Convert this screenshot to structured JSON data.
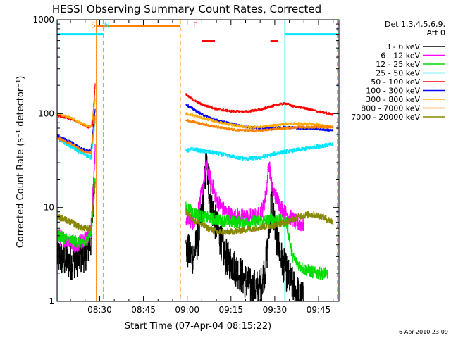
{
  "chart_data": {
    "type": "line",
    "title": "HESSI Observing Summary Count Rates, Corrected",
    "xlabel": "Start Time (07-Apr-04 08:15:22)",
    "ylabel": "Corrected Count Rate (s⁻¹ detector⁻¹)",
    "yscale": "log",
    "ylim": [
      1,
      1000
    ],
    "xlim_minutes": [
      15.4,
      112
    ],
    "x_ticks": [
      {
        "label": "08:30",
        "minute": 30
      },
      {
        "label": "08:45",
        "minute": 45
      },
      {
        "label": "09:00",
        "minute": 60
      },
      {
        "label": "09:15",
        "minute": 75
      },
      {
        "label": "09:30",
        "minute": 90
      },
      {
        "label": "09:45",
        "minute": 105
      }
    ],
    "y_ticks": [
      {
        "label": "1",
        "value": 1
      },
      {
        "label": "10",
        "value": 10
      },
      {
        "label": "100",
        "value": 100
      },
      {
        "label": "1000",
        "value": 1000
      }
    ],
    "legend": {
      "header": [
        "Det 1,3,4,5,6,9,",
        "Att 0"
      ],
      "placement": "right"
    },
    "footer_date": "6-Apr-2010 23:09",
    "annotations": [
      {
        "label": "S",
        "color": "#ff8000",
        "minute": 27
      },
      {
        "label": "N",
        "color": "#00e5ff",
        "minute": 31.5
      },
      {
        "label": "F",
        "color": "#ff0000",
        "minute": 62
      }
    ],
    "vertical_lines": [
      {
        "minute": 15.4,
        "color": "#00e5ff",
        "style": "solid"
      },
      {
        "minute": 28.9,
        "color": "#ff8000",
        "style": "solid"
      },
      {
        "minute": 31.3,
        "color": "#00e5ff",
        "style": "dashed"
      },
      {
        "minute": 57.6,
        "color": "#ff8000",
        "style": "dashed"
      },
      {
        "minute": 93.5,
        "color": "#00e5ff",
        "style": "solid"
      },
      {
        "minute": 111.5,
        "color": "#00e5ff",
        "style": "dashed"
      }
    ],
    "status_bars": [
      {
        "name": "night",
        "color": "#00e5ff",
        "value": 700,
        "ranges": [
          [
            15.4,
            31.3
          ],
          [
            93.5,
            111.5
          ]
        ]
      },
      {
        "name": "saa",
        "color": "#ff8000",
        "value": 850,
        "ranges": [
          [
            28.9,
            57.6
          ]
        ]
      },
      {
        "name": "flare",
        "color": "#ff0000",
        "value": 590,
        "ranges": [
          [
            65,
            69.5
          ],
          [
            88.5,
            91
          ]
        ]
      }
    ],
    "data_gap_minutes": [
      29.5,
      59.5
    ],
    "series": [
      {
        "name": "3 - 6 keV",
        "color": "#000000",
        "noise": 0.45,
        "points": [
          [
            15.4,
            3.0
          ],
          [
            20,
            2.6
          ],
          [
            25,
            3.2
          ],
          [
            27,
            4.5
          ],
          [
            28.5,
            30
          ],
          [
            59.5,
            3.5
          ],
          [
            62,
            3
          ],
          [
            64,
            5
          ],
          [
            65.5,
            12
          ],
          [
            66.5,
            32
          ],
          [
            67.5,
            15
          ],
          [
            69,
            8
          ],
          [
            71,
            5
          ],
          [
            73,
            3
          ],
          [
            76,
            2.4
          ],
          [
            79,
            1.8
          ],
          [
            82,
            1.4
          ],
          [
            85,
            1.4
          ],
          [
            87,
            2.5
          ],
          [
            88,
            6
          ],
          [
            89,
            14
          ],
          [
            90,
            6
          ],
          [
            92,
            3
          ],
          [
            94,
            2
          ],
          [
            96,
            1.5
          ],
          [
            98,
            1.2
          ],
          [
            100,
            1.0
          ]
        ]
      },
      {
        "name": "6 - 12 keV",
        "color": "#ff00ff",
        "noise": 0.2,
        "points": [
          [
            15.4,
            5
          ],
          [
            22,
            4
          ],
          [
            27,
            5.5
          ],
          [
            28.5,
            45
          ],
          [
            59.5,
            8
          ],
          [
            62,
            7
          ],
          [
            64,
            10
          ],
          [
            65.5,
            18
          ],
          [
            66.5,
            28
          ],
          [
            68,
            20
          ],
          [
            70,
            12
          ],
          [
            73,
            9
          ],
          [
            76,
            8
          ],
          [
            80,
            8
          ],
          [
            84,
            8
          ],
          [
            86,
            10
          ],
          [
            87,
            14
          ],
          [
            88,
            30
          ],
          [
            89,
            16
          ],
          [
            91,
            12
          ],
          [
            93,
            9
          ],
          [
            95,
            8
          ],
          [
            97,
            7
          ],
          [
            100,
            6.5
          ]
        ]
      },
      {
        "name": "12 - 25 keV",
        "color": "#00dd00",
        "noise": 0.15,
        "points": [
          [
            15.4,
            5
          ],
          [
            20,
            4.5
          ],
          [
            25,
            4.2
          ],
          [
            27,
            5.5
          ],
          [
            28.5,
            20
          ],
          [
            59.5,
            10
          ],
          [
            62,
            9
          ],
          [
            65,
            8
          ],
          [
            70,
            7.5
          ],
          [
            75,
            7
          ],
          [
            80,
            7
          ],
          [
            85,
            7.2
          ],
          [
            90,
            7.5
          ],
          [
            94,
            7
          ],
          [
            96,
            3
          ],
          [
            98,
            2.5
          ],
          [
            100,
            2.2
          ],
          [
            104,
            2
          ],
          [
            108,
            2
          ]
        ]
      },
      {
        "name": "25 - 50 keV",
        "color": "#00e5ff",
        "noise": 0.05,
        "points": [
          [
            15.4,
            55
          ],
          [
            20,
            45
          ],
          [
            24,
            38
          ],
          [
            27,
            34
          ],
          [
            28.5,
            90
          ],
          [
            59.5,
            40
          ],
          [
            62,
            42
          ],
          [
            65,
            40
          ],
          [
            70,
            38
          ],
          [
            75,
            35
          ],
          [
            80,
            33
          ],
          [
            85,
            34
          ],
          [
            88,
            36
          ],
          [
            91,
            38
          ],
          [
            95,
            40
          ],
          [
            100,
            42
          ],
          [
            105,
            45
          ],
          [
            110,
            47
          ]
        ]
      },
      {
        "name": "50 - 100 keV",
        "color": "#ff0000",
        "noise": 0.03,
        "points": [
          [
            15.4,
            95
          ],
          [
            19,
            90
          ],
          [
            23,
            80
          ],
          [
            26,
            72
          ],
          [
            27.5,
            75
          ],
          [
            28.5,
            230
          ],
          [
            59.5,
            160
          ],
          [
            62,
            140
          ],
          [
            65,
            125
          ],
          [
            70,
            112
          ],
          [
            75,
            106
          ],
          [
            80,
            105
          ],
          [
            85,
            110
          ],
          [
            88,
            118
          ],
          [
            91,
            125
          ],
          [
            94,
            128
          ],
          [
            96,
            120
          ],
          [
            100,
            115
          ],
          [
            105,
            105
          ],
          [
            110,
            98
          ]
        ]
      },
      {
        "name": "100 - 300 keV",
        "color": "#0000ff",
        "noise": 0.03,
        "points": [
          [
            15.4,
            58
          ],
          [
            20,
            50
          ],
          [
            24,
            42
          ],
          [
            27,
            40
          ],
          [
            28.5,
            120
          ],
          [
            59.5,
            125
          ],
          [
            62,
            112
          ],
          [
            65,
            98
          ],
          [
            70,
            85
          ],
          [
            75,
            78
          ],
          [
            80,
            72
          ],
          [
            85,
            70
          ],
          [
            90,
            70
          ],
          [
            94,
            72
          ],
          [
            98,
            70
          ],
          [
            102,
            70
          ],
          [
            106,
            68
          ],
          [
            110,
            66
          ]
        ]
      },
      {
        "name": "300 - 800 keV",
        "color": "#ffaa00",
        "noise": 0.03,
        "points": [
          [
            15.4,
            100
          ],
          [
            20,
            90
          ],
          [
            24,
            78
          ],
          [
            27,
            72
          ],
          [
            28.5,
            145
          ],
          [
            59.5,
            100
          ],
          [
            62,
            96
          ],
          [
            65,
            90
          ],
          [
            70,
            82
          ],
          [
            75,
            76
          ],
          [
            80,
            72
          ],
          [
            85,
            72
          ],
          [
            90,
            75
          ],
          [
            94,
            78
          ],
          [
            98,
            78
          ],
          [
            102,
            78
          ],
          [
            106,
            75
          ],
          [
            110,
            72
          ]
        ]
      },
      {
        "name": "800 - 7000 keV",
        "color": "#ff8000",
        "noise": 0.03,
        "points": [
          [
            15.4,
            55
          ],
          [
            20,
            48
          ],
          [
            24,
            40
          ],
          [
            27,
            38
          ],
          [
            28.5,
            100
          ],
          [
            59.5,
            85
          ],
          [
            62,
            82
          ],
          [
            65,
            78
          ],
          [
            70,
            72
          ],
          [
            75,
            68
          ],
          [
            80,
            66
          ],
          [
            85,
            66
          ],
          [
            90,
            68
          ],
          [
            94,
            70
          ],
          [
            98,
            72
          ],
          [
            102,
            72
          ],
          [
            106,
            72
          ],
          [
            110,
            72
          ]
        ]
      },
      {
        "name": "7000 - 20000 keV",
        "color": "#888800",
        "noise": 0.08,
        "points": [
          [
            15.4,
            8
          ],
          [
            20,
            7
          ],
          [
            24,
            6
          ],
          [
            27,
            6
          ],
          [
            28.5,
            20
          ],
          [
            59.5,
            9
          ],
          [
            62,
            7.5
          ],
          [
            65,
            6.5
          ],
          [
            70,
            5.5
          ],
          [
            75,
            5.5
          ],
          [
            80,
            5.8
          ],
          [
            85,
            6.2
          ],
          [
            90,
            6.5
          ],
          [
            94,
            7
          ],
          [
            98,
            8
          ],
          [
            102,
            8.5
          ],
          [
            106,
            8
          ],
          [
            110,
            7
          ]
        ]
      }
    ]
  }
}
